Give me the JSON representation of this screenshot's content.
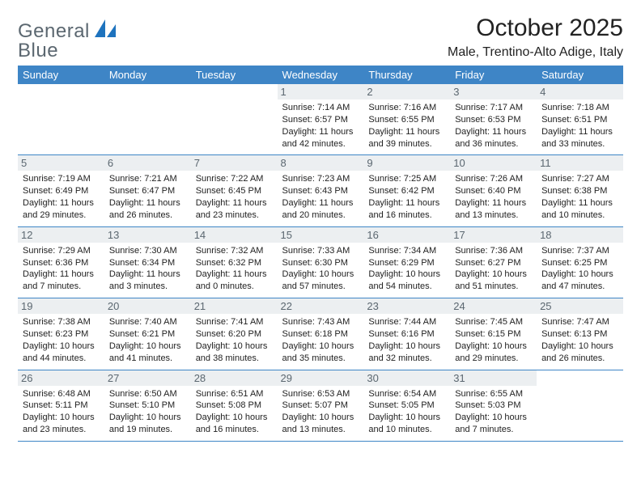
{
  "logo": {
    "word1": "General",
    "word2": "Blue"
  },
  "title": "October 2025",
  "location": "Male, Trentino-Alto Adige, Italy",
  "colors": {
    "header_bg": "#3e85c6",
    "header_text": "#ffffff",
    "daynum_bg": "#eceff1",
    "daynum_text": "#5b6770",
    "row_border": "#3e85c6",
    "body_text": "#222222",
    "logo_gray": "#5b6770",
    "logo_blue": "#1e73be",
    "page_bg": "#ffffff"
  },
  "days": [
    "Sunday",
    "Monday",
    "Tuesday",
    "Wednesday",
    "Thursday",
    "Friday",
    "Saturday"
  ],
  "weeks": [
    [
      null,
      null,
      null,
      {
        "n": "1",
        "sr": "Sunrise: 7:14 AM",
        "ss": "Sunset: 6:57 PM",
        "dl": "Daylight: 11 hours and 42 minutes."
      },
      {
        "n": "2",
        "sr": "Sunrise: 7:16 AM",
        "ss": "Sunset: 6:55 PM",
        "dl": "Daylight: 11 hours and 39 minutes."
      },
      {
        "n": "3",
        "sr": "Sunrise: 7:17 AM",
        "ss": "Sunset: 6:53 PM",
        "dl": "Daylight: 11 hours and 36 minutes."
      },
      {
        "n": "4",
        "sr": "Sunrise: 7:18 AM",
        "ss": "Sunset: 6:51 PM",
        "dl": "Daylight: 11 hours and 33 minutes."
      }
    ],
    [
      {
        "n": "5",
        "sr": "Sunrise: 7:19 AM",
        "ss": "Sunset: 6:49 PM",
        "dl": "Daylight: 11 hours and 29 minutes."
      },
      {
        "n": "6",
        "sr": "Sunrise: 7:21 AM",
        "ss": "Sunset: 6:47 PM",
        "dl": "Daylight: 11 hours and 26 minutes."
      },
      {
        "n": "7",
        "sr": "Sunrise: 7:22 AM",
        "ss": "Sunset: 6:45 PM",
        "dl": "Daylight: 11 hours and 23 minutes."
      },
      {
        "n": "8",
        "sr": "Sunrise: 7:23 AM",
        "ss": "Sunset: 6:43 PM",
        "dl": "Daylight: 11 hours and 20 minutes."
      },
      {
        "n": "9",
        "sr": "Sunrise: 7:25 AM",
        "ss": "Sunset: 6:42 PM",
        "dl": "Daylight: 11 hours and 16 minutes."
      },
      {
        "n": "10",
        "sr": "Sunrise: 7:26 AM",
        "ss": "Sunset: 6:40 PM",
        "dl": "Daylight: 11 hours and 13 minutes."
      },
      {
        "n": "11",
        "sr": "Sunrise: 7:27 AM",
        "ss": "Sunset: 6:38 PM",
        "dl": "Daylight: 11 hours and 10 minutes."
      }
    ],
    [
      {
        "n": "12",
        "sr": "Sunrise: 7:29 AM",
        "ss": "Sunset: 6:36 PM",
        "dl": "Daylight: 11 hours and 7 minutes."
      },
      {
        "n": "13",
        "sr": "Sunrise: 7:30 AM",
        "ss": "Sunset: 6:34 PM",
        "dl": "Daylight: 11 hours and 3 minutes."
      },
      {
        "n": "14",
        "sr": "Sunrise: 7:32 AM",
        "ss": "Sunset: 6:32 PM",
        "dl": "Daylight: 11 hours and 0 minutes."
      },
      {
        "n": "15",
        "sr": "Sunrise: 7:33 AM",
        "ss": "Sunset: 6:30 PM",
        "dl": "Daylight: 10 hours and 57 minutes."
      },
      {
        "n": "16",
        "sr": "Sunrise: 7:34 AM",
        "ss": "Sunset: 6:29 PM",
        "dl": "Daylight: 10 hours and 54 minutes."
      },
      {
        "n": "17",
        "sr": "Sunrise: 7:36 AM",
        "ss": "Sunset: 6:27 PM",
        "dl": "Daylight: 10 hours and 51 minutes."
      },
      {
        "n": "18",
        "sr": "Sunrise: 7:37 AM",
        "ss": "Sunset: 6:25 PM",
        "dl": "Daylight: 10 hours and 47 minutes."
      }
    ],
    [
      {
        "n": "19",
        "sr": "Sunrise: 7:38 AM",
        "ss": "Sunset: 6:23 PM",
        "dl": "Daylight: 10 hours and 44 minutes."
      },
      {
        "n": "20",
        "sr": "Sunrise: 7:40 AM",
        "ss": "Sunset: 6:21 PM",
        "dl": "Daylight: 10 hours and 41 minutes."
      },
      {
        "n": "21",
        "sr": "Sunrise: 7:41 AM",
        "ss": "Sunset: 6:20 PM",
        "dl": "Daylight: 10 hours and 38 minutes."
      },
      {
        "n": "22",
        "sr": "Sunrise: 7:43 AM",
        "ss": "Sunset: 6:18 PM",
        "dl": "Daylight: 10 hours and 35 minutes."
      },
      {
        "n": "23",
        "sr": "Sunrise: 7:44 AM",
        "ss": "Sunset: 6:16 PM",
        "dl": "Daylight: 10 hours and 32 minutes."
      },
      {
        "n": "24",
        "sr": "Sunrise: 7:45 AM",
        "ss": "Sunset: 6:15 PM",
        "dl": "Daylight: 10 hours and 29 minutes."
      },
      {
        "n": "25",
        "sr": "Sunrise: 7:47 AM",
        "ss": "Sunset: 6:13 PM",
        "dl": "Daylight: 10 hours and 26 minutes."
      }
    ],
    [
      {
        "n": "26",
        "sr": "Sunrise: 6:48 AM",
        "ss": "Sunset: 5:11 PM",
        "dl": "Daylight: 10 hours and 23 minutes."
      },
      {
        "n": "27",
        "sr": "Sunrise: 6:50 AM",
        "ss": "Sunset: 5:10 PM",
        "dl": "Daylight: 10 hours and 19 minutes."
      },
      {
        "n": "28",
        "sr": "Sunrise: 6:51 AM",
        "ss": "Sunset: 5:08 PM",
        "dl": "Daylight: 10 hours and 16 minutes."
      },
      {
        "n": "29",
        "sr": "Sunrise: 6:53 AM",
        "ss": "Sunset: 5:07 PM",
        "dl": "Daylight: 10 hours and 13 minutes."
      },
      {
        "n": "30",
        "sr": "Sunrise: 6:54 AM",
        "ss": "Sunset: 5:05 PM",
        "dl": "Daylight: 10 hours and 10 minutes."
      },
      {
        "n": "31",
        "sr": "Sunrise: 6:55 AM",
        "ss": "Sunset: 5:03 PM",
        "dl": "Daylight: 10 hours and 7 minutes."
      },
      null
    ]
  ]
}
